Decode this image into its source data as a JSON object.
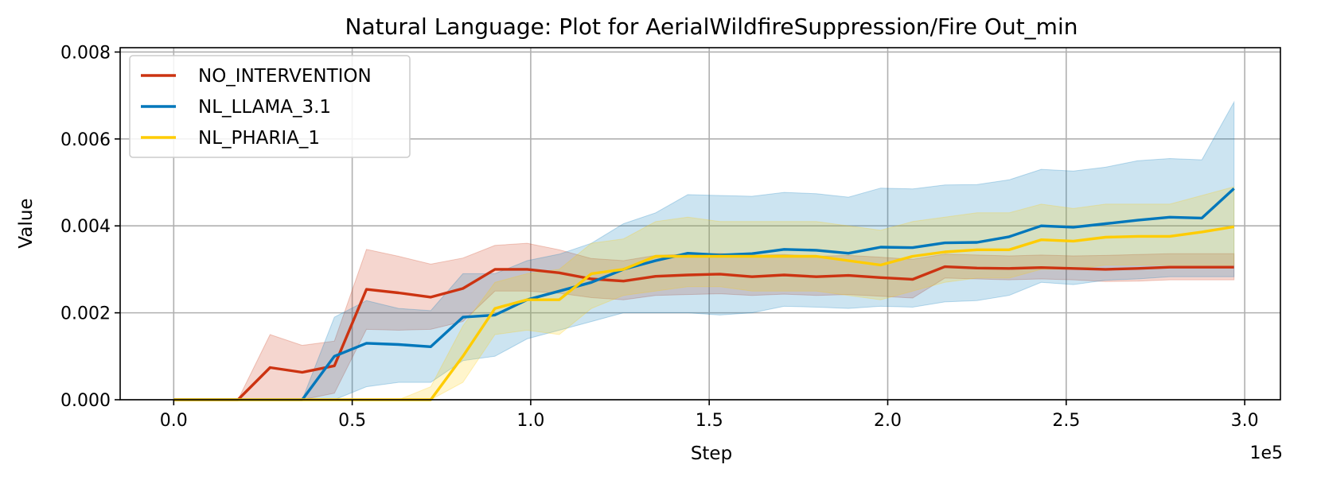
{
  "chart_data": {
    "type": "line",
    "title": "Natural Language: Plot for AerialWildfireSuppression/Fire Out_min",
    "xlabel": "Step",
    "ylabel": "Value",
    "x_scale_label": "1e5",
    "xlim": [
      -0.15,
      3.1
    ],
    "ylim": [
      0,
      0.0081
    ],
    "x_ticks": [
      0.0,
      0.5,
      1.0,
      1.5,
      2.0,
      2.5,
      3.0
    ],
    "x_tick_labels": [
      "0.0",
      "0.5",
      "1.0",
      "1.5",
      "2.0",
      "2.5",
      "3.0"
    ],
    "y_ticks": [
      0,
      0.002,
      0.004,
      0.006,
      0.008
    ],
    "y_tick_labels": [
      "0.000",
      "0.002",
      "0.004",
      "0.006",
      "0.008"
    ],
    "grid": true,
    "legend_position": "upper-left",
    "x": [
      0,
      0.09,
      0.18,
      0.27,
      0.36,
      0.45,
      0.54,
      0.63,
      0.72,
      0.81,
      0.9,
      0.99,
      1.08,
      1.17,
      1.26,
      1.35,
      1.44,
      1.53,
      1.62,
      1.71,
      1.8,
      1.89,
      1.98,
      2.07,
      2.16,
      2.25,
      2.34,
      2.43,
      2.52,
      2.61,
      2.7,
      2.79,
      2.88,
      2.97
    ],
    "series": [
      {
        "name": "NO_INTERVENTION",
        "color": "#cc3311",
        "values": [
          0,
          0,
          0,
          0.00074,
          0.00063,
          0.00078,
          0.00254,
          0.00246,
          0.00236,
          0.00256,
          0.003,
          0.003,
          0.00292,
          0.00278,
          0.00273,
          0.00284,
          0.00287,
          0.00289,
          0.00283,
          0.00287,
          0.00283,
          0.00286,
          0.00281,
          0.00277,
          0.00306,
          0.00303,
          0.00302,
          0.00304,
          0.00302,
          0.003,
          0.00302,
          0.00305,
          0.00305,
          0.00305
        ],
        "lower": [
          0,
          0,
          0,
          0,
          0,
          0.00015,
          0.00162,
          0.0016,
          0.00162,
          0.0018,
          0.0025,
          0.0025,
          0.00245,
          0.00235,
          0.0023,
          0.0024,
          0.00242,
          0.00244,
          0.0024,
          0.00243,
          0.0024,
          0.00242,
          0.00238,
          0.00234,
          0.0028,
          0.00278,
          0.00276,
          0.00278,
          0.00276,
          0.00272,
          0.00273,
          0.00276,
          0.00276,
          0.00276
        ],
        "upper": [
          0,
          0,
          0,
          0.0015,
          0.00125,
          0.00135,
          0.00346,
          0.0033,
          0.00312,
          0.00326,
          0.00355,
          0.0036,
          0.00345,
          0.00325,
          0.0032,
          0.00332,
          0.00335,
          0.00337,
          0.00332,
          0.00334,
          0.0033,
          0.00332,
          0.00328,
          0.00323,
          0.00335,
          0.00333,
          0.00331,
          0.00333,
          0.00331,
          0.00332,
          0.00334,
          0.00336,
          0.00336,
          0.00336
        ]
      },
      {
        "name": "NL_LLAMA_3.1",
        "color": "#0077bb",
        "values": [
          0,
          0,
          0,
          0,
          0,
          0.001,
          0.0013,
          0.00127,
          0.00122,
          0.0019,
          0.00195,
          0.0023,
          0.0025,
          0.0027,
          0.003,
          0.0032,
          0.00337,
          0.00333,
          0.00336,
          0.00346,
          0.00344,
          0.00337,
          0.00351,
          0.0035,
          0.00361,
          0.00362,
          0.00375,
          0.004,
          0.00397,
          0.00405,
          0.00413,
          0.0042,
          0.00418,
          0.00486
        ],
        "lower": [
          0,
          0,
          0,
          0,
          0,
          0,
          0.0003,
          0.0004,
          0.0004,
          0.0009,
          0.001,
          0.0014,
          0.0016,
          0.0018,
          0.002,
          0.002,
          0.002,
          0.00195,
          0.002,
          0.00215,
          0.00213,
          0.0021,
          0.00215,
          0.00213,
          0.00225,
          0.00228,
          0.0024,
          0.0027,
          0.00265,
          0.00275,
          0.00278,
          0.00283,
          0.00283,
          0.00283
        ],
        "upper": [
          0,
          0,
          0,
          0,
          0,
          0.0019,
          0.00228,
          0.0021,
          0.00205,
          0.0029,
          0.0029,
          0.0032,
          0.00335,
          0.0036,
          0.00405,
          0.0043,
          0.00472,
          0.0047,
          0.00468,
          0.00477,
          0.00474,
          0.00466,
          0.00487,
          0.00485,
          0.00494,
          0.00495,
          0.00506,
          0.0053,
          0.00526,
          0.00535,
          0.0055,
          0.00555,
          0.00552,
          0.00685
        ]
      },
      {
        "name": "NL_PHARIA_1",
        "color": "#ffcc00",
        "values": [
          0,
          0,
          0,
          0,
          0,
          0,
          0,
          0,
          0,
          0.001,
          0.0021,
          0.0023,
          0.0023,
          0.0029,
          0.003,
          0.0033,
          0.0033,
          0.0033,
          0.0033,
          0.0033,
          0.0033,
          0.0032,
          0.0031,
          0.0033,
          0.0034,
          0.00345,
          0.00345,
          0.00368,
          0.00365,
          0.00374,
          0.00376,
          0.00376,
          0.00386,
          0.00398
        ],
        "lower": [
          0,
          0,
          0,
          0,
          0,
          0,
          0,
          0,
          0,
          0.0004,
          0.0015,
          0.0016,
          0.0015,
          0.0021,
          0.0024,
          0.0025,
          0.0026,
          0.0026,
          0.0025,
          0.0025,
          0.0025,
          0.0024,
          0.0023,
          0.0025,
          0.0027,
          0.0028,
          0.0028,
          0.003,
          0.003,
          0.0031,
          0.0031,
          0.0031,
          0.0031,
          0.0031
        ],
        "upper": [
          0,
          0,
          0,
          0,
          0,
          0,
          0,
          0,
          0.0003,
          0.0017,
          0.0027,
          0.0029,
          0.003,
          0.0036,
          0.0037,
          0.0041,
          0.0042,
          0.0041,
          0.0041,
          0.0041,
          0.0041,
          0.004,
          0.0039,
          0.0041,
          0.0042,
          0.0043,
          0.0043,
          0.0045,
          0.0044,
          0.0045,
          0.0045,
          0.0045,
          0.0047,
          0.0049
        ]
      }
    ]
  }
}
